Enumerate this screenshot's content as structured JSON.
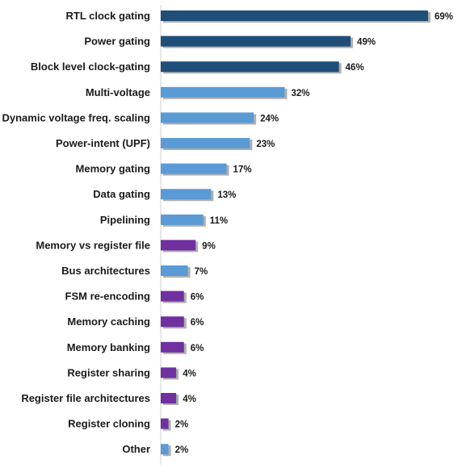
{
  "chart_data": {
    "type": "bar",
    "orientation": "horizontal",
    "title": "",
    "xlabel": "",
    "ylabel": "",
    "xlim": [
      0,
      69
    ],
    "grid": false,
    "legend": "none",
    "value_suffix": "%",
    "categories": [
      "RTL clock gating",
      "Power gating",
      "Block level clock-gating",
      "Multi-voltage",
      "Dynamic voltage freq. scaling",
      "Power-intent (UPF)",
      "Memory gating",
      "Data gating",
      "Pipelining",
      "Memory vs register file",
      "Bus architectures",
      "FSM re-encoding",
      "Memory caching",
      "Memory banking",
      "Register sharing",
      "Register file architectures",
      "Register cloning",
      "Other"
    ],
    "values": [
      69,
      49,
      46,
      32,
      24,
      23,
      17,
      13,
      11,
      9,
      7,
      6,
      6,
      6,
      4,
      4,
      2,
      2
    ],
    "bar_groups": [
      "top",
      "top",
      "top",
      "mid",
      "mid",
      "mid",
      "mid",
      "mid",
      "mid",
      "low",
      "mid",
      "low",
      "low",
      "low",
      "low",
      "low",
      "low",
      "mid"
    ],
    "colors": {
      "top": "#1f4e79",
      "mid": "#5b9bd5",
      "low": "#7030a0",
      "shadow": "#b0b0b0",
      "axis": "#d0d0d0"
    }
  }
}
